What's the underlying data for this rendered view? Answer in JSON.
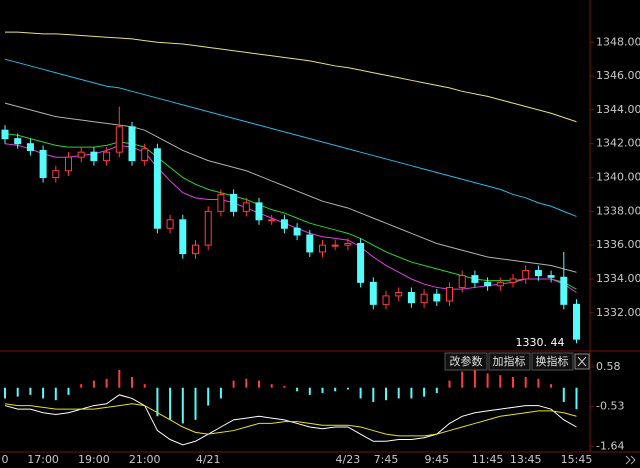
{
  "chart_data": [
    {
      "type": "candlestick",
      "categories": [
        "0",
        null,
        null,
        "17:00",
        null,
        null,
        null,
        "19:00",
        null,
        null,
        null,
        "21:00",
        null,
        null,
        null,
        null,
        "4/21",
        null,
        null,
        null,
        null,
        null,
        null,
        null,
        null,
        null,
        null,
        "4/23",
        null,
        null,
        "7:45",
        null,
        null,
        null,
        "9:45",
        null,
        null,
        null,
        "11:45",
        null,
        null,
        "13:45",
        null,
        null,
        null,
        "15:45"
      ],
      "open": [
        1342.8,
        1342.3,
        1342.0,
        1341.6,
        1340.0,
        1340.4,
        1341.2,
        1341.5,
        1341.0,
        1341.5,
        1343.0,
        1341.0,
        1341.7,
        1337.0,
        1337.5,
        1335.5,
        1336.0,
        1338.0,
        1339.0,
        1338.0,
        1338.5,
        1337.5,
        1337.5,
        1337.0,
        1336.6,
        1335.6,
        1336.0,
        1336.0,
        1336.1,
        1333.8,
        1332.5,
        1333.0,
        1333.2,
        1332.6,
        1333.1,
        1332.7,
        1333.5,
        1334.2,
        1333.8,
        1333.6,
        1333.8,
        1334.0,
        1334.5,
        1334.2,
        1334.1,
        1332.5
      ],
      "high": [
        1343.1,
        1342.6,
        1342.3,
        1341.9,
        1340.7,
        1341.5,
        1341.8,
        1341.8,
        1341.8,
        1344.2,
        1343.3,
        1342.0,
        1342.0,
        1337.8,
        1337.8,
        1336.3,
        1338.3,
        1339.3,
        1339.3,
        1338.8,
        1338.8,
        1337.8,
        1337.8,
        1337.3,
        1336.9,
        1336.3,
        1336.3,
        1336.4,
        1336.4,
        1334.1,
        1333.3,
        1333.5,
        1333.5,
        1333.4,
        1333.4,
        1333.8,
        1334.5,
        1334.5,
        1334.1,
        1334.1,
        1334.3,
        1334.8,
        1334.8,
        1334.5,
        1335.6,
        1332.8
      ],
      "low": [
        1342.0,
        1341.7,
        1341.3,
        1339.7,
        1339.7,
        1340.1,
        1340.9,
        1340.7,
        1340.7,
        1341.2,
        1340.7,
        1340.7,
        1336.7,
        1336.7,
        1335.2,
        1335.2,
        1335.7,
        1337.7,
        1337.7,
        1337.7,
        1337.2,
        1337.2,
        1336.7,
        1336.3,
        1335.3,
        1335.3,
        1335.7,
        1335.7,
        1333.5,
        1332.2,
        1332.2,
        1332.7,
        1332.3,
        1332.3,
        1332.4,
        1332.4,
        1333.2,
        1333.5,
        1333.3,
        1333.3,
        1333.5,
        1333.7,
        1333.9,
        1333.8,
        1332.2,
        1330.2
      ],
      "close": [
        1342.3,
        1342.0,
        1341.6,
        1340.0,
        1340.4,
        1341.2,
        1341.5,
        1341.0,
        1341.5,
        1343.0,
        1341.0,
        1341.7,
        1337.0,
        1337.5,
        1335.5,
        1336.0,
        1338.0,
        1339.0,
        1338.0,
        1338.5,
        1337.5,
        1337.5,
        1337.0,
        1336.6,
        1335.6,
        1336.0,
        1336.0,
        1336.1,
        1333.8,
        1332.5,
        1333.0,
        1333.2,
        1332.6,
        1333.1,
        1332.7,
        1333.5,
        1334.2,
        1333.8,
        1333.6,
        1333.8,
        1334.0,
        1334.5,
        1334.2,
        1334.1,
        1332.5,
        1330.44
      ],
      "up_color": "#ff3c3c",
      "down_color": "#54fcfc",
      "series": [
        {
          "color": "#e8e07a",
          "values": [
            1348.6,
            1348.6,
            1348.55,
            1348.5,
            1348.5,
            1348.45,
            1348.4,
            1348.35,
            1348.3,
            1348.25,
            1348.2,
            1348.1,
            1348.0,
            1347.95,
            1347.9,
            1347.8,
            1347.7,
            1347.6,
            1347.5,
            1347.4,
            1347.3,
            1347.2,
            1347.1,
            1347.0,
            1346.9,
            1346.75,
            1346.6,
            1346.5,
            1346.35,
            1346.2,
            1346.05,
            1345.9,
            1345.75,
            1345.6,
            1345.45,
            1345.3,
            1345.1,
            1344.95,
            1344.8,
            1344.6,
            1344.4,
            1344.2,
            1344.0,
            1343.8,
            1343.55,
            1343.3
          ]
        },
        {
          "color": "#2ab8e0",
          "values": [
            1347.0,
            1346.8,
            1346.6,
            1346.4,
            1346.2,
            1346.0,
            1345.8,
            1345.6,
            1345.4,
            1345.3,
            1345.1,
            1344.9,
            1344.7,
            1344.5,
            1344.3,
            1344.1,
            1343.9,
            1343.7,
            1343.5,
            1343.3,
            1343.1,
            1342.9,
            1342.7,
            1342.5,
            1342.3,
            1342.1,
            1341.9,
            1341.7,
            1341.5,
            1341.3,
            1341.1,
            1340.9,
            1340.7,
            1340.5,
            1340.3,
            1340.1,
            1339.9,
            1339.7,
            1339.5,
            1339.3,
            1339.0,
            1338.8,
            1338.5,
            1338.3,
            1338.0,
            1337.7
          ]
        },
        {
          "color": "#b0b0b0",
          "values": [
            1344.4,
            1344.2,
            1344.0,
            1343.8,
            1343.6,
            1343.5,
            1343.4,
            1343.3,
            1343.2,
            1343.1,
            1343.0,
            1342.8,
            1342.4,
            1342.0,
            1341.6,
            1341.3,
            1341.0,
            1340.8,
            1340.6,
            1340.4,
            1340.1,
            1339.8,
            1339.5,
            1339.2,
            1338.9,
            1338.6,
            1338.4,
            1338.2,
            1337.9,
            1337.6,
            1337.3,
            1337.0,
            1336.7,
            1336.4,
            1336.1,
            1335.9,
            1335.7,
            1335.5,
            1335.3,
            1335.2,
            1335.1,
            1335.0,
            1334.9,
            1334.8,
            1334.6,
            1334.4
          ]
        },
        {
          "color": "#2ed12e",
          "values": [
            1342.6,
            1342.5,
            1342.3,
            1342.1,
            1341.9,
            1341.8,
            1341.8,
            1341.8,
            1341.9,
            1342.1,
            1342.0,
            1341.8,
            1341.2,
            1340.6,
            1340.0,
            1339.6,
            1339.3,
            1339.1,
            1338.9,
            1338.7,
            1338.4,
            1338.1,
            1337.9,
            1337.6,
            1337.3,
            1337.1,
            1336.9,
            1336.7,
            1336.4,
            1336.0,
            1335.6,
            1335.3,
            1335.0,
            1334.8,
            1334.6,
            1334.4,
            1334.2,
            1334.0,
            1333.9,
            1333.9,
            1333.9,
            1334.0,
            1334.0,
            1334.0,
            1333.8,
            1333.4
          ]
        },
        {
          "color": "#e040e0",
          "values": [
            1342.0,
            1341.9,
            1341.7,
            1341.4,
            1341.2,
            1341.2,
            1341.3,
            1341.4,
            1341.6,
            1341.9,
            1341.8,
            1341.5,
            1340.6,
            1339.8,
            1339.1,
            1338.8,
            1338.7,
            1338.7,
            1338.5,
            1338.2,
            1337.9,
            1337.6,
            1337.3,
            1337.0,
            1336.7,
            1336.5,
            1336.4,
            1336.3,
            1335.9,
            1335.3,
            1334.8,
            1334.4,
            1334.0,
            1333.7,
            1333.5,
            1333.4,
            1333.4,
            1333.5,
            1333.6,
            1333.7,
            1333.8,
            1334.0,
            1334.0,
            1334.0,
            1333.7,
            1333.2
          ]
        }
      ],
      "last_label": "1330. 44",
      "ylim": [
        1329.8,
        1350.5
      ],
      "yticks": [
        {
          "value": 1332,
          "label": "1332.00"
        },
        {
          "value": 1334,
          "label": "1334.00"
        },
        {
          "value": 1336,
          "label": "1336.00"
        },
        {
          "value": 1338,
          "label": "1338.00"
        },
        {
          "value": 1340,
          "label": "1340.00"
        },
        {
          "value": 1342,
          "label": "1342.00"
        },
        {
          "value": 1344,
          "label": "1344.00"
        },
        {
          "value": 1346,
          "label": "1346.00"
        },
        {
          "value": 1348,
          "label": "1348.00"
        }
      ],
      "grid": false
    },
    {
      "type": "macd",
      "buttons": [
        "改参数",
        "加指标",
        "换指标"
      ],
      "values": [
        -0.3,
        -0.25,
        -0.2,
        -0.3,
        -0.35,
        -0.2,
        0.1,
        0.2,
        0.25,
        0.5,
        0.3,
        0.1,
        -0.8,
        -0.9,
        -1.0,
        -0.9,
        -0.5,
        -0.3,
        0.2,
        0.25,
        0.2,
        0.1,
        0.05,
        -0.1,
        -0.2,
        -0.15,
        -0.1,
        -0.05,
        -0.3,
        -0.4,
        -0.35,
        -0.3,
        -0.3,
        -0.25,
        -0.15,
        0.2,
        0.45,
        0.5,
        0.4,
        0.35,
        0.3,
        0.3,
        0.25,
        0.1,
        -0.4,
        -0.6
      ],
      "pos_color": "#ff3c3c",
      "neg_color": "#54fcfc",
      "series": [
        {
          "color": "#ffffff",
          "values": [
            -0.5,
            -0.6,
            -0.6,
            -0.7,
            -0.75,
            -0.7,
            -0.6,
            -0.5,
            -0.45,
            -0.2,
            -0.3,
            -0.5,
            -1.2,
            -1.45,
            -1.6,
            -1.5,
            -1.3,
            -1.1,
            -0.9,
            -0.85,
            -0.8,
            -0.85,
            -0.9,
            -1.0,
            -1.1,
            -1.15,
            -1.1,
            -1.1,
            -1.3,
            -1.5,
            -1.5,
            -1.45,
            -1.45,
            -1.4,
            -1.3,
            -1.0,
            -0.8,
            -0.7,
            -0.65,
            -0.6,
            -0.55,
            -0.5,
            -0.5,
            -0.6,
            -0.9,
            -1.1
          ]
        },
        {
          "color": "#e8e020",
          "values": [
            -0.45,
            -0.5,
            -0.5,
            -0.55,
            -0.6,
            -0.6,
            -0.6,
            -0.6,
            -0.55,
            -0.5,
            -0.45,
            -0.5,
            -0.7,
            -0.9,
            -1.1,
            -1.25,
            -1.3,
            -1.25,
            -1.2,
            -1.1,
            -1.0,
            -1.0,
            -0.95,
            -0.95,
            -1.0,
            -1.05,
            -1.05,
            -1.05,
            -1.1,
            -1.2,
            -1.3,
            -1.35,
            -1.35,
            -1.35,
            -1.3,
            -1.2,
            -1.1,
            -1.0,
            -0.9,
            -0.8,
            -0.75,
            -0.7,
            -0.65,
            -0.65,
            -0.7,
            -0.8
          ]
        }
      ],
      "ylim": [
        -1.8,
        1.0
      ],
      "yticks": [
        0.58,
        -0.53,
        -1.64
      ]
    }
  ]
}
